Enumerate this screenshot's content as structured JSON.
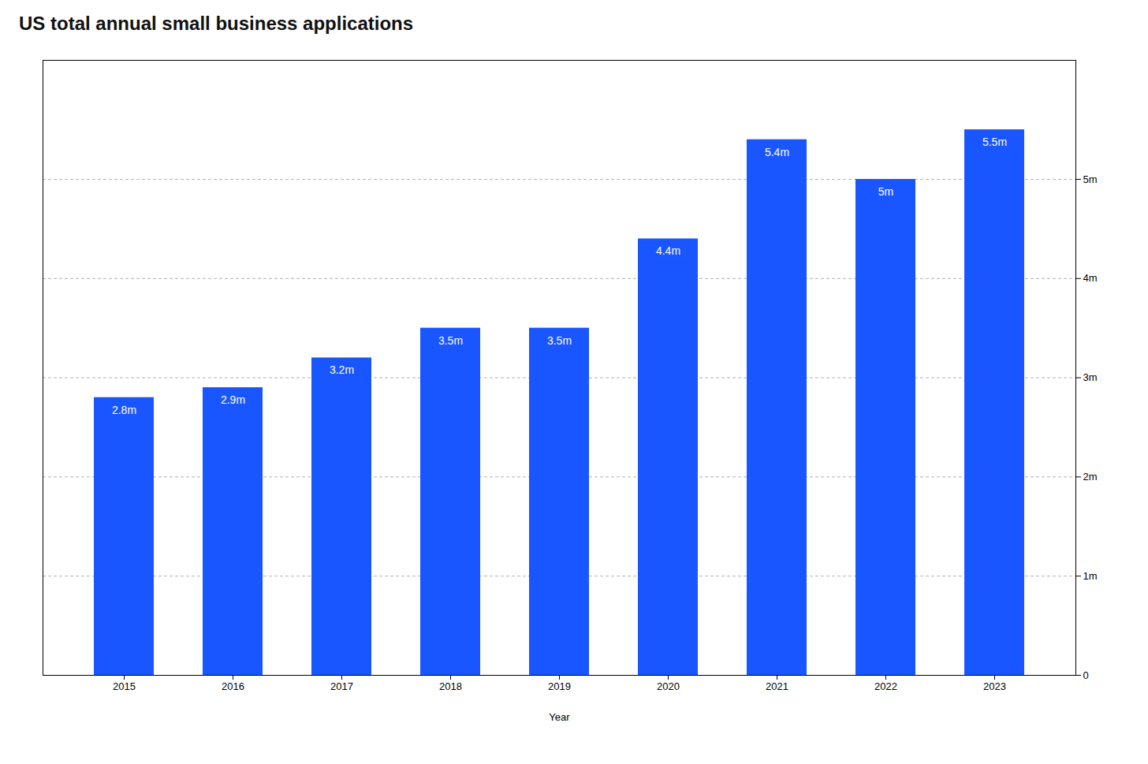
{
  "chart_data": {
    "type": "bar",
    "title": "US total annual small business applications",
    "xlabel": "Year",
    "categories": [
      "2015",
      "2016",
      "2017",
      "2018",
      "2019",
      "2020",
      "2021",
      "2022",
      "2023"
    ],
    "values": [
      2.8,
      2.9,
      3.2,
      3.5,
      3.5,
      4.4,
      5.4,
      5.0,
      5.5
    ],
    "value_labels": [
      "2.8m",
      "2.9m",
      "3.2m",
      "3.5m",
      "3.5m",
      "4.4m",
      "5.4m",
      "5m",
      "5.5m"
    ],
    "data_labels": true,
    "color": "#1A56FF",
    "ylim": [
      0,
      6.2
    ],
    "yticks": [
      0,
      {
        "value": 1,
        "label": "1m"
      },
      {
        "value": 2,
        "label": "2m"
      },
      {
        "value": 3,
        "label": "3m"
      },
      {
        "value": 4,
        "label": "4m"
      },
      {
        "value": 5,
        "label": "5m"
      }
    ],
    "grid": true
  }
}
